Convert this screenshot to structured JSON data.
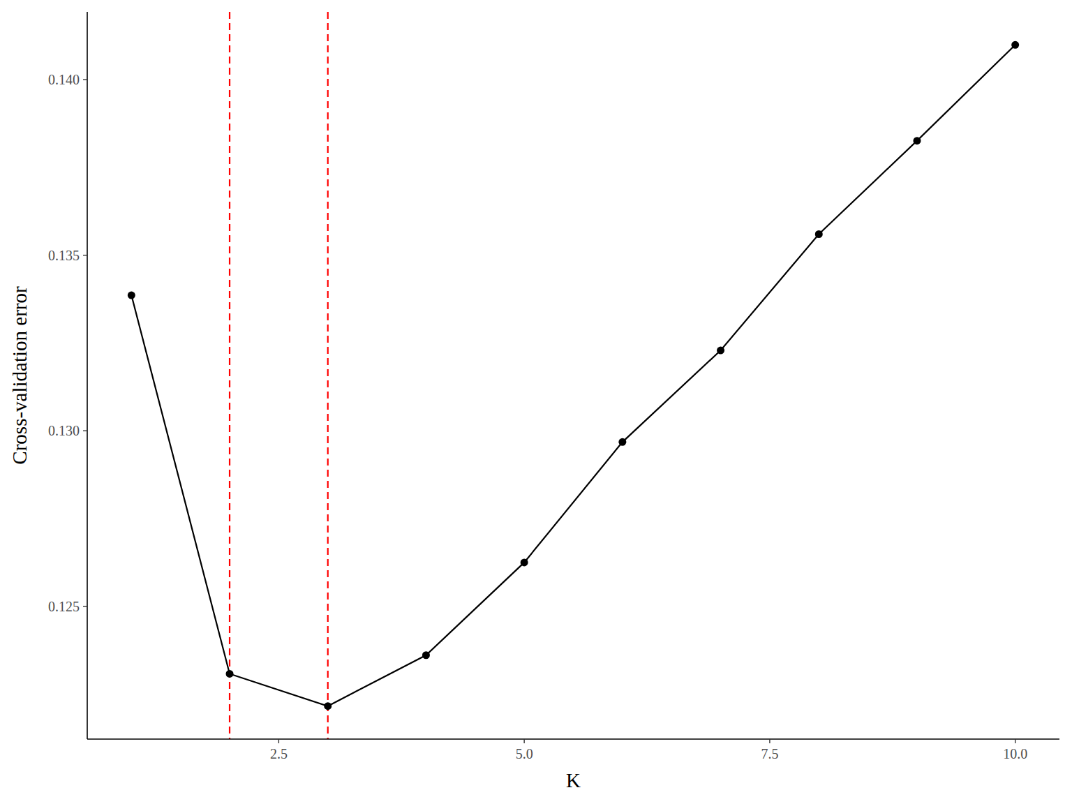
{
  "chart_data": {
    "type": "line",
    "x_label": "K",
    "y_label": "Cross-validation error",
    "x": [
      1,
      2,
      3,
      4,
      5,
      6,
      7,
      8,
      9,
      10
    ],
    "values": [
      0.13386,
      0.12308,
      0.12216,
      0.12361,
      0.12625,
      0.12968,
      0.13229,
      0.1356,
      0.13826,
      0.14099
    ],
    "color": "#000000",
    "marker": "circle",
    "xlim": [
      0.55,
      10.45
    ],
    "ylim": [
      0.12122,
      0.14193
    ],
    "xticks": [
      2.5,
      {
        "value": 5,
        "label": "5.0"
      },
      7.5,
      {
        "value": 10,
        "label": "10.0"
      }
    ],
    "yticks": [
      0.125,
      {
        "value": 0.13,
        "label": "0.130"
      },
      0.135,
      {
        "value": 0.14,
        "label": "0.140"
      }
    ],
    "grid": false,
    "reference_lines": {
      "x": [
        2,
        3
      ],
      "color": "#ff0000",
      "line_style": "dashed"
    }
  }
}
